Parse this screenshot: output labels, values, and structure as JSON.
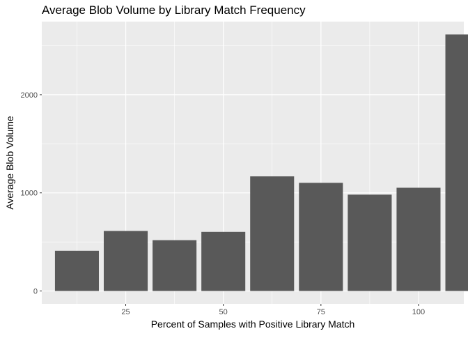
{
  "chart_data": {
    "type": "bar",
    "title": "Average Blob Volume by Library Match Frequency",
    "xlabel": "Percent of Samples with Positive Library Match",
    "ylabel": "Average Blob Volume",
    "x": [
      12.5,
      25,
      37.5,
      50,
      62.5,
      75,
      87.5,
      100,
      112.5
    ],
    "values": [
      410,
      612,
      518,
      602,
      1168,
      1102,
      982,
      1052,
      2614
    ],
    "xticks": [
      25,
      50,
      75,
      100
    ],
    "yticks": [
      0,
      1000,
      2000
    ],
    "xlim": [
      3.5,
      111.6
    ],
    "ylim": [
      -131,
      2745
    ],
    "grid": true,
    "bar_color": "#595959",
    "panel_color": "#ebebeb",
    "grid_color": "#ffffff"
  }
}
